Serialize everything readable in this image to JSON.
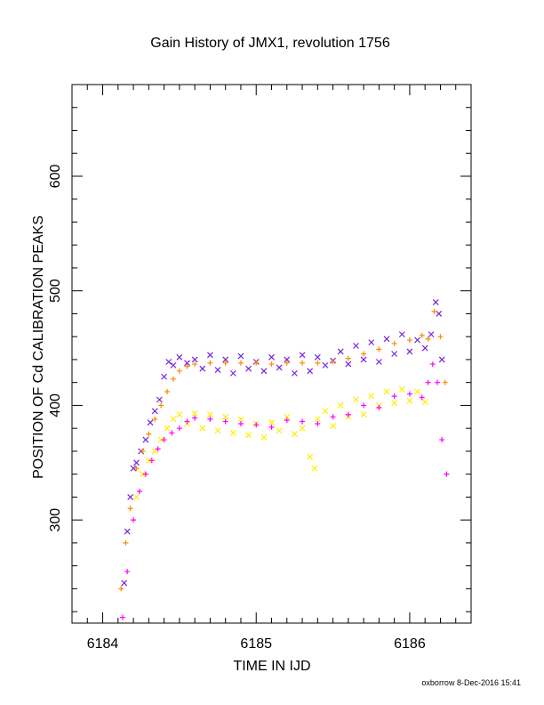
{
  "chart_data": {
    "type": "scatter",
    "title": "Gain History of JMX1, revolution 1756",
    "xlabel": "TIME IN IJD",
    "ylabel": "POSITION OF Cd CALIBRATION PEAKS",
    "xlim": [
      6183.8,
      6186.4
    ],
    "ylim": [
      210,
      680
    ],
    "x_ticks": [
      6184,
      6185,
      6186
    ],
    "y_ticks": [
      300,
      400,
      500,
      600
    ],
    "grid": false,
    "footer": "oxborrow 8-Dec-2016 15:41",
    "series": [
      {
        "color": "#7722dd",
        "marker": "x",
        "points": [
          [
            6184.14,
            245
          ],
          [
            6184.16,
            290
          ],
          [
            6184.18,
            320
          ],
          [
            6184.2,
            345
          ],
          [
            6184.22,
            350
          ],
          [
            6184.25,
            360
          ],
          [
            6184.28,
            370
          ],
          [
            6184.31,
            385
          ],
          [
            6184.34,
            395
          ],
          [
            6184.37,
            405
          ],
          [
            6184.4,
            425
          ],
          [
            6184.43,
            438
          ],
          [
            6184.46,
            435
          ],
          [
            6184.5,
            442
          ],
          [
            6184.55,
            437
          ],
          [
            6184.6,
            440
          ],
          [
            6184.65,
            432
          ],
          [
            6184.7,
            444
          ],
          [
            6184.75,
            431
          ],
          [
            6184.8,
            440
          ],
          [
            6184.85,
            428
          ],
          [
            6184.9,
            443
          ],
          [
            6184.95,
            432
          ],
          [
            6185.0,
            438
          ],
          [
            6185.05,
            430
          ],
          [
            6185.1,
            442
          ],
          [
            6185.15,
            433
          ],
          [
            6185.2,
            440
          ],
          [
            6185.25,
            428
          ],
          [
            6185.3,
            444
          ],
          [
            6185.35,
            430
          ],
          [
            6185.4,
            442
          ],
          [
            6185.45,
            435
          ],
          [
            6185.5,
            439
          ],
          [
            6185.55,
            447
          ],
          [
            6185.6,
            436
          ],
          [
            6185.65,
            452
          ],
          [
            6185.7,
            440
          ],
          [
            6185.75,
            455
          ],
          [
            6185.8,
            438
          ],
          [
            6185.85,
            458
          ],
          [
            6185.9,
            445
          ],
          [
            6185.95,
            462
          ],
          [
            6186.0,
            447
          ],
          [
            6186.05,
            457
          ],
          [
            6186.1,
            450
          ],
          [
            6186.14,
            462
          ],
          [
            6186.17,
            490
          ],
          [
            6186.19,
            480
          ],
          [
            6186.21,
            440
          ]
        ]
      },
      {
        "color": "#ff8800",
        "marker": "+",
        "points": [
          [
            6184.12,
            240
          ],
          [
            6184.15,
            280
          ],
          [
            6184.18,
            310
          ],
          [
            6184.22,
            345
          ],
          [
            6184.26,
            360
          ],
          [
            6184.3,
            375
          ],
          [
            6184.34,
            388
          ],
          [
            6184.38,
            400
          ],
          [
            6184.42,
            412
          ],
          [
            6184.46,
            423
          ],
          [
            6184.5,
            430
          ],
          [
            6184.55,
            434
          ],
          [
            6184.6,
            436
          ],
          [
            6184.7,
            437
          ],
          [
            6184.8,
            437
          ],
          [
            6184.9,
            437
          ],
          [
            6185.0,
            437
          ],
          [
            6185.1,
            436
          ],
          [
            6185.2,
            437
          ],
          [
            6185.3,
            437
          ],
          [
            6185.4,
            437
          ],
          [
            6185.5,
            438
          ],
          [
            6185.6,
            441
          ],
          [
            6185.7,
            445
          ],
          [
            6185.8,
            449
          ],
          [
            6185.9,
            454
          ],
          [
            6186.0,
            457
          ],
          [
            6186.08,
            461
          ],
          [
            6186.12,
            458
          ],
          [
            6186.16,
            482
          ],
          [
            6186.2,
            460
          ],
          [
            6186.23,
            420
          ]
        ]
      },
      {
        "color": "#ffee00",
        "marker": "x",
        "points": [
          [
            6184.22,
            320
          ],
          [
            6184.26,
            340
          ],
          [
            6184.3,
            352
          ],
          [
            6184.34,
            360
          ],
          [
            6184.38,
            370
          ],
          [
            6184.42,
            380
          ],
          [
            6184.46,
            388
          ],
          [
            6184.5,
            392
          ],
          [
            6184.55,
            384
          ],
          [
            6184.6,
            393
          ],
          [
            6184.65,
            380
          ],
          [
            6184.7,
            392
          ],
          [
            6184.75,
            378
          ],
          [
            6184.8,
            390
          ],
          [
            6184.85,
            376
          ],
          [
            6184.9,
            388
          ],
          [
            6184.95,
            374
          ],
          [
            6185.0,
            384
          ],
          [
            6185.05,
            372
          ],
          [
            6185.1,
            385
          ],
          [
            6185.15,
            378
          ],
          [
            6185.2,
            390
          ],
          [
            6185.25,
            375
          ],
          [
            6185.3,
            380
          ],
          [
            6185.35,
            355
          ],
          [
            6185.38,
            345
          ],
          [
            6185.4,
            388
          ],
          [
            6185.45,
            395
          ],
          [
            6185.5,
            382
          ],
          [
            6185.55,
            400
          ],
          [
            6185.6,
            390
          ],
          [
            6185.65,
            405
          ],
          [
            6185.7,
            392
          ],
          [
            6185.75,
            408
          ],
          [
            6185.8,
            400
          ],
          [
            6185.85,
            412
          ],
          [
            6185.9,
            402
          ],
          [
            6185.95,
            414
          ],
          [
            6186.0,
            404
          ],
          [
            6186.05,
            412
          ],
          [
            6186.1,
            403
          ]
        ]
      },
      {
        "color": "#ff00ff",
        "marker": "+",
        "points": [
          [
            6184.13,
            215
          ],
          [
            6184.16,
            255
          ],
          [
            6184.2,
            300
          ],
          [
            6184.24,
            325
          ],
          [
            6184.28,
            340
          ],
          [
            6184.32,
            352
          ],
          [
            6184.36,
            362
          ],
          [
            6184.4,
            370
          ],
          [
            6184.45,
            376
          ],
          [
            6184.5,
            380
          ],
          [
            6184.55,
            386
          ],
          [
            6184.6,
            389
          ],
          [
            6184.7,
            388
          ],
          [
            6184.8,
            386
          ],
          [
            6184.9,
            384
          ],
          [
            6185.0,
            383
          ],
          [
            6185.1,
            381
          ],
          [
            6185.2,
            387
          ],
          [
            6185.3,
            386
          ],
          [
            6185.4,
            384
          ],
          [
            6185.5,
            390
          ],
          [
            6185.6,
            392
          ],
          [
            6185.7,
            400
          ],
          [
            6185.8,
            398
          ],
          [
            6185.9,
            408
          ],
          [
            6186.0,
            410
          ],
          [
            6186.08,
            407
          ],
          [
            6186.12,
            420
          ],
          [
            6186.15,
            436
          ],
          [
            6186.18,
            420
          ],
          [
            6186.21,
            370
          ],
          [
            6186.24,
            340
          ]
        ]
      }
    ]
  }
}
